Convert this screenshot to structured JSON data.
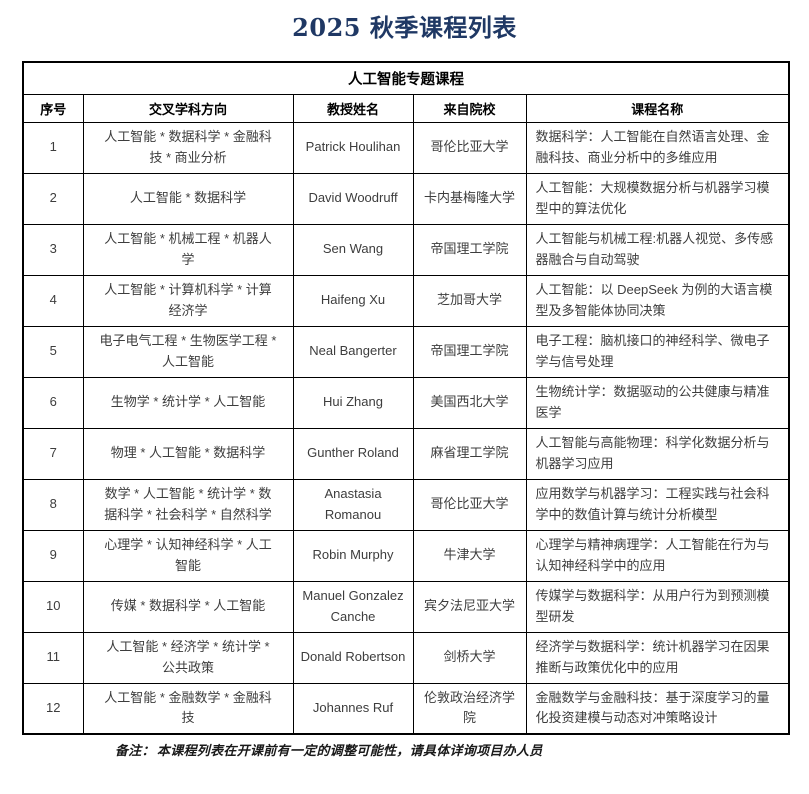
{
  "page_title": "2025 秋季课程列表",
  "table": {
    "group_header": "人工智能专题课程",
    "columns": [
      "序号",
      "交叉学科方向",
      "教授姓名",
      "来自院校",
      "课程名称"
    ],
    "rows": [
      {
        "no": "1",
        "direction": "人工智能 * 数据科学 * 金融科技 * 商业分析",
        "professor": "Patrick Houlihan",
        "university": "哥伦比亚大学",
        "course": "数据科学：人工智能在自然语言处理、金融科技、商业分析中的多维应用"
      },
      {
        "no": "2",
        "direction": "人工智能 * 数据科学",
        "professor": "David Woodruff",
        "university": "卡内基梅隆大学",
        "course": "人工智能：大规模数据分析与机器学习模型中的算法优化"
      },
      {
        "no": "3",
        "direction": "人工智能 * 机械工程 * 机器人学",
        "professor": "Sen Wang",
        "university": "帝国理工学院",
        "course": "人工智能与机械工程:机器人视觉、多传感器融合与自动驾驶"
      },
      {
        "no": "4",
        "direction": "人工智能 * 计算机科学 * 计算经济学",
        "professor": "Haifeng Xu",
        "university": "芝加哥大学",
        "course": "人工智能：以 DeepSeek 为例的大语言模型及多智能体协同决策"
      },
      {
        "no": "5",
        "direction": "电子电气工程 * 生物医学工程 * 人工智能",
        "professor": "Neal Bangerter",
        "university": "帝国理工学院",
        "course": "电子工程：脑机接口的神经科学、微电子学与信号处理"
      },
      {
        "no": "6",
        "direction": "生物学 * 统计学 * 人工智能",
        "professor": "Hui Zhang",
        "university": "美国西北大学",
        "course": "生物统计学：数据驱动的公共健康与精准医学"
      },
      {
        "no": "7",
        "direction": "物理 * 人工智能 * 数据科学",
        "professor": "Gunther Roland",
        "university": "麻省理工学院",
        "course": "人工智能与高能物理：科学化数据分析与机器学习应用"
      },
      {
        "no": "8",
        "direction": "数学 * 人工智能 * 统计学 * 数据科学 * 社会科学 * 自然科学",
        "professor": "Anastasia Romanou",
        "university": "哥伦比亚大学",
        "course": "应用数学与机器学习：工程实践与社会科学中的数值计算与统计分析模型"
      },
      {
        "no": "9",
        "direction": "心理学 * 认知神经科学 * 人工智能",
        "professor": "Robin Murphy",
        "university": "牛津大学",
        "course": "心理学与精神病理学：人工智能在行为与认知神经科学中的应用"
      },
      {
        "no": "10",
        "direction": "传媒 * 数据科学 * 人工智能",
        "professor": "Manuel Gonzalez Canche",
        "university": "宾夕法尼亚大学",
        "course": "传媒学与数据科学：从用户行为到预测模型研发"
      },
      {
        "no": "11",
        "direction": "人工智能 * 经济学 * 统计学 * 公共政策",
        "professor": "Donald Robertson",
        "university": "剑桥大学",
        "course": "经济学与数据科学：统计机器学习在因果推断与政策优化中的应用"
      },
      {
        "no": "12",
        "direction": "人工智能 * 金融数学 * 金融科技",
        "professor": "Johannes Ruf",
        "university": "伦敦政治经济学院",
        "course": "金融数学与金融科技：基于深度学习的量化投资建模与动态对冲策略设计"
      }
    ]
  },
  "footnote": {
    "label": "备注：",
    "text": "本课程列表在开课前有一定的调整可能性，请具体详询项目办人员"
  },
  "colors": {
    "title_text": "#1f3864",
    "body_text": "#3d3d3d",
    "header_text": "#000000",
    "border": "#000000",
    "background": "#ffffff"
  }
}
